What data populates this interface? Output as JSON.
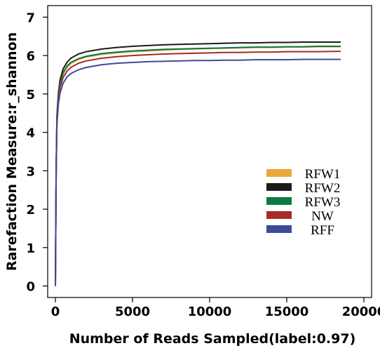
{
  "chart_data": {
    "type": "line",
    "xlabel": "Number of Reads Sampled(label:0.97)",
    "ylabel": "Rarefaction Measure:r_shannon",
    "xlim": [
      -500,
      20500
    ],
    "ylim": [
      -0.3,
      7.3
    ],
    "x_ticks": [
      0,
      5000,
      10000,
      15000,
      20000
    ],
    "x_tick_labels": [
      "0",
      "5000",
      "10000",
      "15000",
      "20000"
    ],
    "y_ticks": [
      0,
      1,
      2,
      3,
      4,
      5,
      6,
      7
    ],
    "y_tick_labels": [
      "0",
      "1",
      "2",
      "3",
      "4",
      "5",
      "6",
      "7"
    ],
    "grid": false,
    "legend_position": "lower-right",
    "x": [
      0,
      50,
      100,
      200,
      300,
      500,
      750,
      1000,
      1500,
      2000,
      3000,
      4000,
      5000,
      6000,
      7000,
      8000,
      9000,
      10000,
      11000,
      12000,
      13000,
      14000,
      15000,
      16000,
      17000,
      18500
    ],
    "series": [
      {
        "name": "RFW1",
        "color": "#E8A83C",
        "values": [
          0,
          3.0,
          4.35,
          4.95,
          5.24,
          5.52,
          5.69,
          5.79,
          5.9,
          5.96,
          6.03,
          6.07,
          6.1,
          6.12,
          6.14,
          6.16,
          6.17,
          6.18,
          6.19,
          6.2,
          6.21,
          6.21,
          6.22,
          6.22,
          6.23,
          6.23
        ]
      },
      {
        "name": "RFW2",
        "color": "#1A1A1A",
        "values": [
          0,
          3.1,
          4.45,
          5.05,
          5.36,
          5.65,
          5.82,
          5.93,
          6.04,
          6.1,
          6.17,
          6.21,
          6.24,
          6.26,
          6.28,
          6.29,
          6.3,
          6.31,
          6.32,
          6.33,
          6.33,
          6.34,
          6.34,
          6.35,
          6.35,
          6.35
        ]
      },
      {
        "name": "RFW3",
        "color": "#0B7A3E",
        "values": [
          0,
          3.0,
          4.38,
          4.98,
          5.27,
          5.55,
          5.72,
          5.82,
          5.92,
          5.98,
          6.05,
          6.09,
          6.12,
          6.14,
          6.16,
          6.17,
          6.18,
          6.19,
          6.2,
          6.21,
          6.22,
          6.22,
          6.23,
          6.23,
          6.24,
          6.24
        ]
      },
      {
        "name": "NW",
        "color": "#A52A2A",
        "values": [
          0,
          2.95,
          4.3,
          4.88,
          5.16,
          5.43,
          5.59,
          5.69,
          5.8,
          5.86,
          5.93,
          5.97,
          6.0,
          6.02,
          6.04,
          6.05,
          6.06,
          6.07,
          6.08,
          6.08,
          6.09,
          6.09,
          6.1,
          6.1,
          6.1,
          6.11
        ]
      },
      {
        "name": "RFF",
        "color": "#3F4A9A",
        "values": [
          0,
          2.9,
          4.2,
          4.75,
          5.02,
          5.28,
          5.44,
          5.53,
          5.63,
          5.69,
          5.76,
          5.8,
          5.82,
          5.84,
          5.85,
          5.86,
          5.87,
          5.87,
          5.88,
          5.88,
          5.89,
          5.89,
          5.89,
          5.9,
          5.9,
          5.9
        ]
      }
    ]
  }
}
